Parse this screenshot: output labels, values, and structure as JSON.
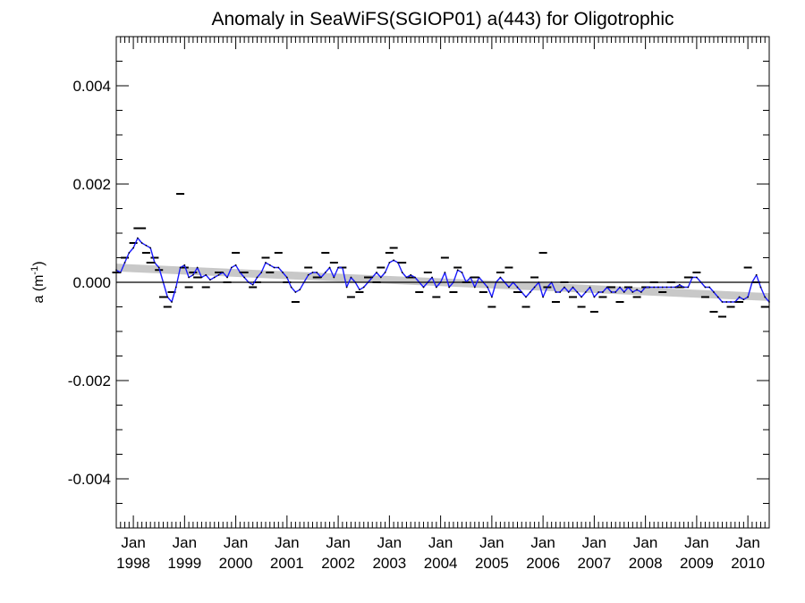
{
  "chart_data": {
    "type": "line",
    "title": "Anomaly in SeaWiFS(SGIOP01) a(443) for Oligotrophic",
    "ylabel": "a (m",
    "ylabel_superscript": "-1",
    "ylabel_close": ")",
    "xlabel": "",
    "x_range": [
      "1997-09",
      "2010-06"
    ],
    "ylim": [
      -0.005,
      0.005
    ],
    "y_ticks": [
      {
        "value": 0.004,
        "label": "0.004"
      },
      {
        "value": 0.002,
        "label": "0.002"
      },
      {
        "value": 0.0,
        "label": "0.000"
      },
      {
        "value": -0.002,
        "label": "-0.002"
      },
      {
        "value": -0.004,
        "label": "-0.004"
      }
    ],
    "x_ticks": [
      {
        "date": "1998-01",
        "month": "Jan",
        "year": "1998"
      },
      {
        "date": "1999-01",
        "month": "Jan",
        "year": "1999"
      },
      {
        "date": "2000-01",
        "month": "Jan",
        "year": "2000"
      },
      {
        "date": "2001-01",
        "month": "Jan",
        "year": "2001"
      },
      {
        "date": "2002-01",
        "month": "Jan",
        "year": "2002"
      },
      {
        "date": "2003-01",
        "month": "Jan",
        "year": "2003"
      },
      {
        "date": "2004-01",
        "month": "Jan",
        "year": "2004"
      },
      {
        "date": "2005-01",
        "month": "Jan",
        "year": "2005"
      },
      {
        "date": "2006-01",
        "month": "Jan",
        "year": "2006"
      },
      {
        "date": "2007-01",
        "month": "Jan",
        "year": "2007"
      },
      {
        "date": "2008-01",
        "month": "Jan",
        "year": "2008"
      },
      {
        "date": "2009-01",
        "month": "Jan",
        "year": "2009"
      },
      {
        "date": "2010-01",
        "month": "Jan",
        "year": "2010"
      }
    ],
    "zero_line": 0.0,
    "trend": {
      "start": {
        "x": "1997-09",
        "y": 0.0003
      },
      "end": {
        "x": "2010-06",
        "y": -0.0003
      }
    },
    "trend_band_halfwidth": 8e-05,
    "series": [
      {
        "kind": "smoothed-line",
        "color": "#1a1aff",
        "points": [
          [
            "1997-09",
            0.00025
          ],
          [
            "1997-10",
            0.0002
          ],
          [
            "1997-11",
            0.0004
          ],
          [
            "1997-12",
            0.0006
          ],
          [
            "1998-01",
            0.0007
          ],
          [
            "1998-02",
            0.0009
          ],
          [
            "1998-03",
            0.0008
          ],
          [
            "1998-04",
            0.00075
          ],
          [
            "1998-05",
            0.0007
          ],
          [
            "1998-06",
            0.0004
          ],
          [
            "1998-07",
            0.0003
          ],
          [
            "1998-08",
            0.0
          ],
          [
            "1998-09",
            -0.0003
          ],
          [
            "1998-10",
            -0.0004
          ],
          [
            "1998-11",
            -0.0001
          ],
          [
            "1998-12",
            0.0003
          ],
          [
            "1999-01",
            0.00035
          ],
          [
            "1999-02",
            0.0001
          ],
          [
            "1999-03",
            0.00015
          ],
          [
            "1999-04",
            0.0003
          ],
          [
            "1999-05",
            0.0001
          ],
          [
            "1999-06",
            0.00015
          ],
          [
            "1999-07",
            5e-05
          ],
          [
            "1999-08",
            0.0001
          ],
          [
            "1999-09",
            0.00015
          ],
          [
            "1999-10",
            0.0002
          ],
          [
            "1999-11",
            0.0001
          ],
          [
            "1999-12",
            0.0003
          ],
          [
            "2000-01",
            0.00035
          ],
          [
            "2000-02",
            0.0002
          ],
          [
            "2000-03",
            0.0001
          ],
          [
            "2000-04",
            0.0
          ],
          [
            "2000-05",
            -5e-05
          ],
          [
            "2000-06",
            0.0001
          ],
          [
            "2000-07",
            0.0002
          ],
          [
            "2000-08",
            0.0004
          ],
          [
            "2000-09",
            0.00035
          ],
          [
            "2000-10",
            0.0003
          ],
          [
            "2000-11",
            0.0003
          ],
          [
            "2000-12",
            0.0002
          ],
          [
            "2001-01",
            0.0001
          ],
          [
            "2001-02",
            -0.0001
          ],
          [
            "2001-03",
            -0.0002
          ],
          [
            "2001-04",
            -0.00015
          ],
          [
            "2001-05",
            0.0
          ],
          [
            "2001-06",
            0.00015
          ],
          [
            "2001-07",
            0.0002
          ],
          [
            "2001-08",
            0.0002
          ],
          [
            "2001-09",
            0.0001
          ],
          [
            "2001-10",
            0.0002
          ],
          [
            "2001-11",
            0.0003
          ],
          [
            "2001-12",
            0.0001
          ],
          [
            "2002-01",
            0.0003
          ],
          [
            "2002-02",
            0.0003
          ],
          [
            "2002-03",
            -0.0001
          ],
          [
            "2002-04",
            0.0001
          ],
          [
            "2002-05",
            0.0
          ],
          [
            "2002-06",
            -0.00015
          ],
          [
            "2002-07",
            -0.0001
          ],
          [
            "2002-08",
            0.0
          ],
          [
            "2002-09",
            0.0001
          ],
          [
            "2002-10",
            0.0002
          ],
          [
            "2002-11",
            0.0001
          ],
          [
            "2002-12",
            0.0002
          ],
          [
            "2003-01",
            0.0004
          ],
          [
            "2003-02",
            0.00045
          ],
          [
            "2003-03",
            0.0004
          ],
          [
            "2003-04",
            0.0002
          ],
          [
            "2003-05",
            0.0001
          ],
          [
            "2003-06",
            0.00015
          ],
          [
            "2003-07",
            0.0001
          ],
          [
            "2003-08",
            0.0
          ],
          [
            "2003-09",
            -0.0001
          ],
          [
            "2003-10",
            0.0
          ],
          [
            "2003-11",
            0.0001
          ],
          [
            "2003-12",
            -0.0001
          ],
          [
            "2004-01",
            0.0
          ],
          [
            "2004-02",
            0.0002
          ],
          [
            "2004-03",
            -0.0001
          ],
          [
            "2004-04",
            0.0
          ],
          [
            "2004-05",
            0.00025
          ],
          [
            "2004-06",
            0.0002
          ],
          [
            "2004-07",
            0.0
          ],
          [
            "2004-08",
            0.0001
          ],
          [
            "2004-09",
            -0.0001
          ],
          [
            "2004-10",
            0.0001
          ],
          [
            "2004-11",
            0.0
          ],
          [
            "2004-12",
            -0.0001
          ],
          [
            "2005-01",
            -0.0003
          ],
          [
            "2005-02",
            0.0
          ],
          [
            "2005-03",
            0.0001
          ],
          [
            "2005-04",
            0.0
          ],
          [
            "2005-05",
            -0.0001
          ],
          [
            "2005-06",
            0.0
          ],
          [
            "2005-07",
            -0.0001
          ],
          [
            "2005-08",
            -0.0002
          ],
          [
            "2005-09",
            -0.0003
          ],
          [
            "2005-10",
            -0.0002
          ],
          [
            "2005-11",
            -0.0001
          ],
          [
            "2005-12",
            0.0
          ],
          [
            "2006-01",
            -0.0003
          ],
          [
            "2006-02",
            -0.0001
          ],
          [
            "2006-03",
            0.0
          ],
          [
            "2006-04",
            -0.0002
          ],
          [
            "2006-05",
            -0.0002
          ],
          [
            "2006-06",
            -0.0001
          ],
          [
            "2006-07",
            -0.0002
          ],
          [
            "2006-08",
            -0.0001
          ],
          [
            "2006-09",
            -0.0002
          ],
          [
            "2006-10",
            -0.0003
          ],
          [
            "2006-11",
            -0.0002
          ],
          [
            "2006-12",
            -0.0001
          ],
          [
            "2007-01",
            -0.0003
          ],
          [
            "2007-02",
            -0.0002
          ],
          [
            "2007-03",
            -0.0002
          ],
          [
            "2007-04",
            -0.0001
          ],
          [
            "2007-05",
            -0.0002
          ],
          [
            "2007-06",
            -0.0002
          ],
          [
            "2007-07",
            -0.0001
          ],
          [
            "2007-08",
            -0.0002
          ],
          [
            "2007-09",
            -0.0001
          ],
          [
            "2007-10",
            -0.0002
          ],
          [
            "2007-11",
            -0.00015
          ],
          [
            "2007-12",
            -0.0002
          ],
          [
            "2008-01",
            -0.0001
          ],
          [
            "2008-02",
            -0.0001
          ],
          [
            "2008-03",
            -0.0001
          ],
          [
            "2008-04",
            -0.0001
          ],
          [
            "2008-05",
            -0.0001
          ],
          [
            "2008-06",
            -0.0001
          ],
          [
            "2008-07",
            -0.0001
          ],
          [
            "2008-08",
            -0.0001
          ],
          [
            "2008-09",
            -5e-05
          ],
          [
            "2008-10",
            -0.0001
          ],
          [
            "2008-11",
            -0.0001
          ],
          [
            "2008-12",
            0.0001
          ],
          [
            "2009-01",
            0.0001
          ],
          [
            "2009-02",
            0.0
          ],
          [
            "2009-03",
            -0.0001
          ],
          [
            "2009-04",
            -0.0001
          ],
          [
            "2009-05",
            -0.0002
          ],
          [
            "2009-06",
            -0.0003
          ],
          [
            "2009-07",
            -0.0004
          ],
          [
            "2009-08",
            -0.0004
          ],
          [
            "2009-09",
            -0.0004
          ],
          [
            "2009-10",
            -0.0004
          ],
          [
            "2009-11",
            -0.0003
          ],
          [
            "2009-12",
            -0.00035
          ],
          [
            "2010-01",
            -0.0003
          ],
          [
            "2010-02",
            0.0
          ],
          [
            "2010-03",
            0.00015
          ],
          [
            "2010-04",
            -0.0001
          ],
          [
            "2010-05",
            -0.0003
          ],
          [
            "2010-06",
            -0.0004
          ]
        ]
      },
      {
        "kind": "dash-markers",
        "color": "#000000",
        "points": [
          [
            "1997-09",
            0.0002
          ],
          [
            "1997-11",
            0.0005
          ],
          [
            "1998-01",
            0.0008
          ],
          [
            "1998-02",
            0.0011
          ],
          [
            "1998-03",
            0.0011
          ],
          [
            "1998-04",
            0.0006
          ],
          [
            "1998-05",
            0.0004
          ],
          [
            "1998-06",
            0.0005
          ],
          [
            "1998-07",
            0.00025
          ],
          [
            "1998-08",
            -0.0003
          ],
          [
            "1998-09",
            -0.0005
          ],
          [
            "1998-10",
            -0.0002
          ],
          [
            "1998-12",
            0.0018
          ],
          [
            "1999-01",
            0.0003
          ],
          [
            "1999-02",
            -0.0001
          ],
          [
            "1999-03",
            0.0002
          ],
          [
            "1999-04",
            0.0001
          ],
          [
            "1999-06",
            -0.0001
          ],
          [
            "1999-09",
            0.0002
          ],
          [
            "1999-11",
            0.0
          ],
          [
            "2000-01",
            0.0006
          ],
          [
            "2000-03",
            0.0002
          ],
          [
            "2000-05",
            -0.0001
          ],
          [
            "2000-06",
            0.0
          ],
          [
            "2000-08",
            0.0005
          ],
          [
            "2000-09",
            0.0002
          ],
          [
            "2000-11",
            0.0006
          ],
          [
            "2001-01",
            0.0
          ],
          [
            "2001-03",
            -0.0004
          ],
          [
            "2001-06",
            0.0003
          ],
          [
            "2001-08",
            0.0001
          ],
          [
            "2001-10",
            0.0006
          ],
          [
            "2001-12",
            0.0004
          ],
          [
            "2002-02",
            0.0003
          ],
          [
            "2002-04",
            -0.0003
          ],
          [
            "2002-06",
            -0.0002
          ],
          [
            "2002-08",
            0.0001
          ],
          [
            "2002-10",
            0.0
          ],
          [
            "2002-11",
            0.0003
          ],
          [
            "2003-01",
            0.0006
          ],
          [
            "2003-02",
            0.0007
          ],
          [
            "2003-04",
            0.0004
          ],
          [
            "2003-06",
            0.0001
          ],
          [
            "2003-08",
            -0.0002
          ],
          [
            "2003-10",
            0.0002
          ],
          [
            "2003-12",
            -0.0003
          ],
          [
            "2004-02",
            0.0005
          ],
          [
            "2004-04",
            -0.0002
          ],
          [
            "2004-05",
            0.0003
          ],
          [
            "2004-07",
            0.0
          ],
          [
            "2004-09",
            0.0001
          ],
          [
            "2004-11",
            -0.0002
          ],
          [
            "2005-01",
            -0.0005
          ],
          [
            "2005-03",
            0.0002
          ],
          [
            "2005-05",
            0.0003
          ],
          [
            "2005-07",
            -0.0002
          ],
          [
            "2005-09",
            -0.0005
          ],
          [
            "2005-11",
            0.0001
          ],
          [
            "2006-01",
            0.0006
          ],
          [
            "2006-02",
            -0.0001
          ],
          [
            "2006-04",
            -0.0004
          ],
          [
            "2006-06",
            0.0
          ],
          [
            "2006-08",
            -0.0003
          ],
          [
            "2006-10",
            -0.0005
          ],
          [
            "2007-01",
            -0.0006
          ],
          [
            "2007-03",
            -0.0003
          ],
          [
            "2007-05",
            -0.0001
          ],
          [
            "2007-07",
            -0.0004
          ],
          [
            "2007-09",
            -0.0001
          ],
          [
            "2007-11",
            -0.0003
          ],
          [
            "2008-01",
            -0.0001
          ],
          [
            "2008-03",
            0.0
          ],
          [
            "2008-05",
            -0.0002
          ],
          [
            "2008-07",
            0.0
          ],
          [
            "2008-09",
            -0.0001
          ],
          [
            "2008-11",
            0.0001
          ],
          [
            "2009-01",
            0.0002
          ],
          [
            "2009-03",
            -0.0003
          ],
          [
            "2009-05",
            -0.0006
          ],
          [
            "2009-07",
            -0.0007
          ],
          [
            "2009-09",
            -0.0005
          ],
          [
            "2009-11",
            -0.0004
          ],
          [
            "2010-01",
            0.0003
          ],
          [
            "2010-03",
            0.0
          ],
          [
            "2010-05",
            -0.0005
          ]
        ]
      }
    ]
  }
}
